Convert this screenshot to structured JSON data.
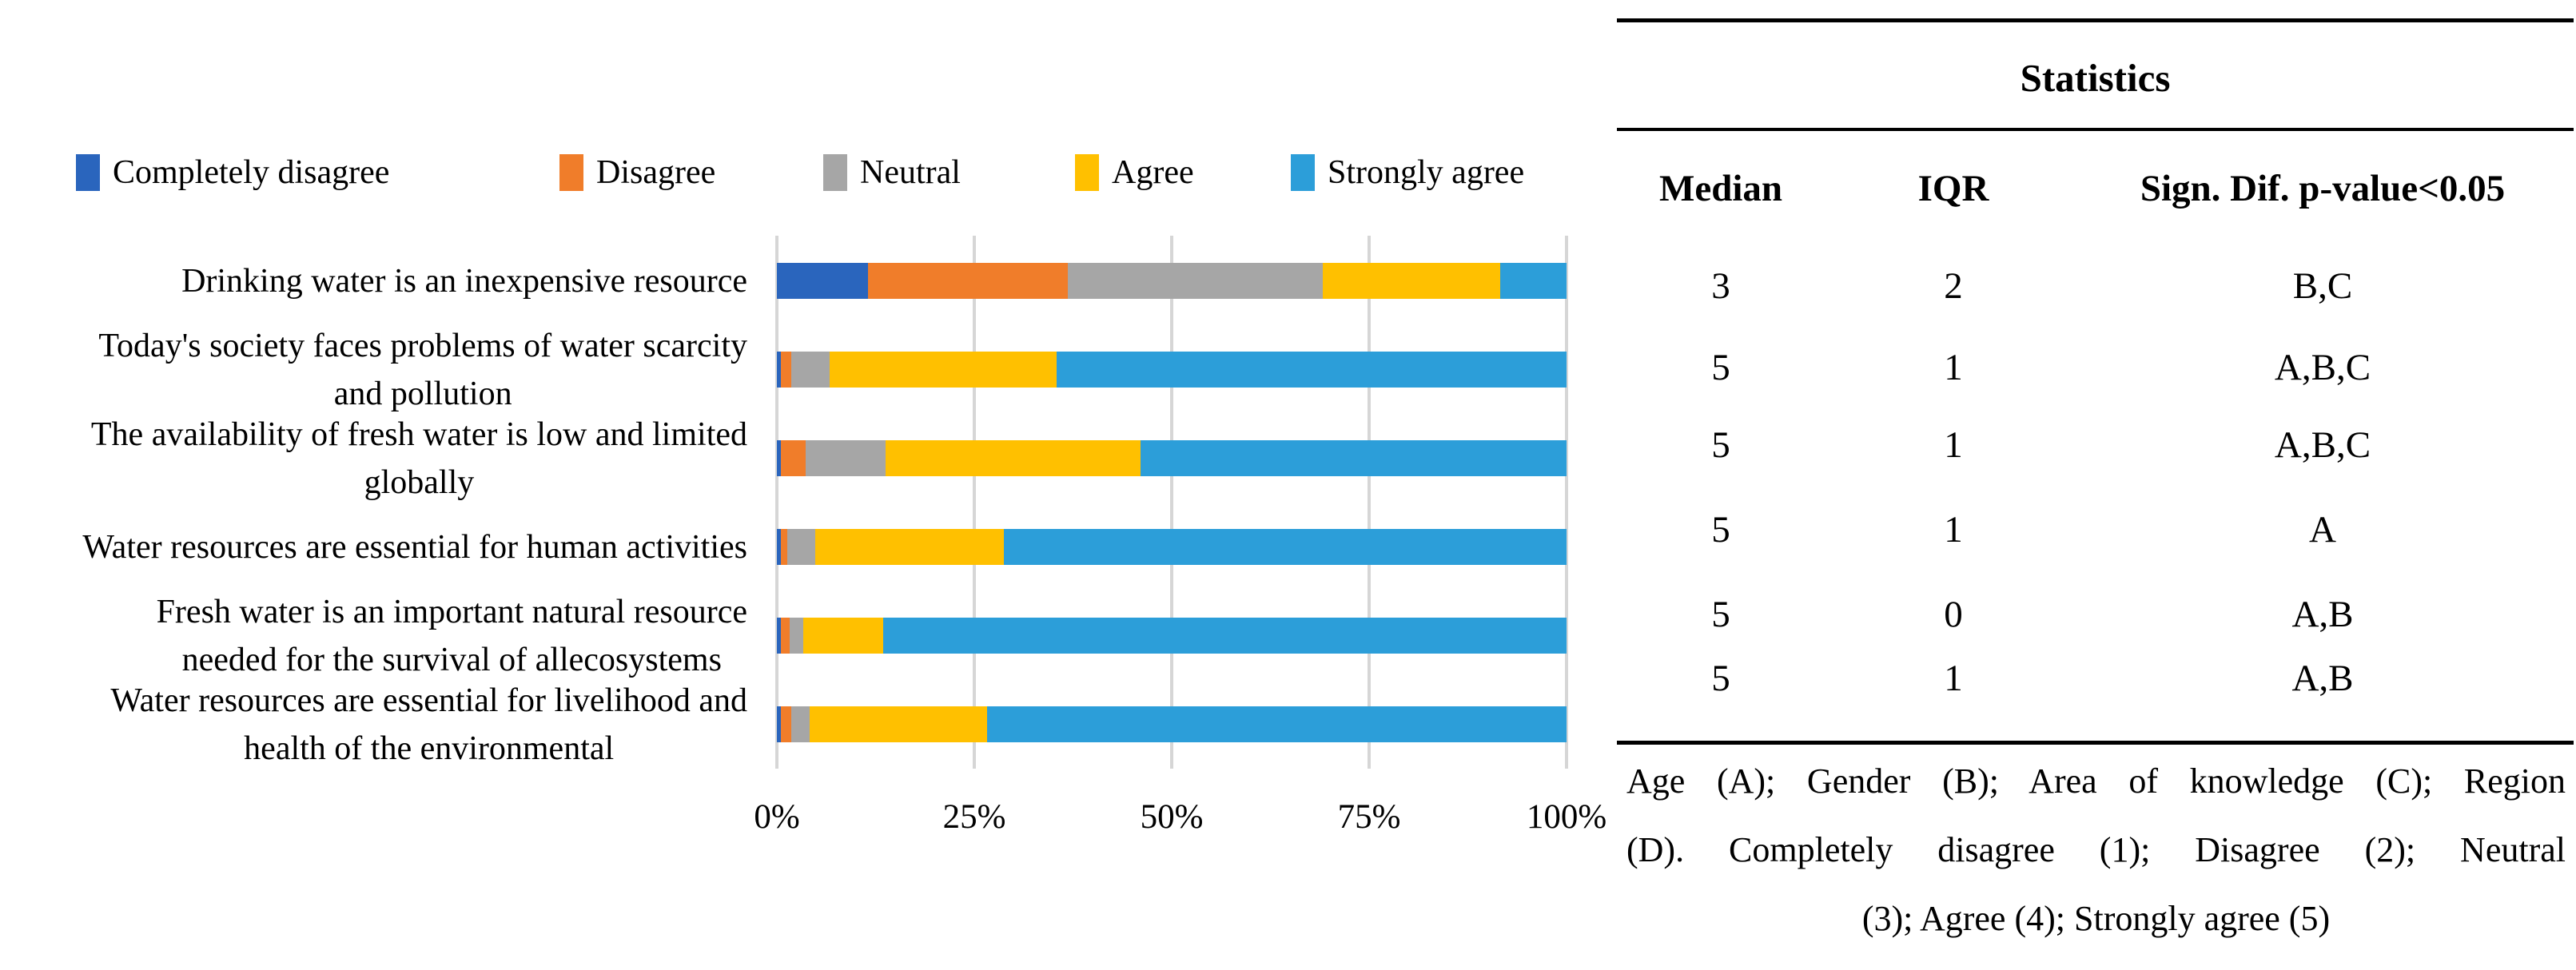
{
  "chart_data": {
    "type": "bar",
    "stacked": true,
    "orientation": "horizontal",
    "unit": "percent",
    "title": "",
    "xlabel": "",
    "ylabel": "",
    "xlim": [
      0,
      100
    ],
    "grid": true,
    "legend_position": "top",
    "x_ticks": [
      "0%",
      "25%",
      "50%",
      "75%",
      "100%"
    ],
    "categories": [
      "Drinking water is an inexpensive resource",
      "Today's society faces problems of water scarcity\nand pollution",
      "The availability of fresh water is low and limited\nglobally",
      "Water resources are essential for human activities",
      "Fresh water is an important natural resource\nneeded for the survival of allecosystems",
      "Water resources are essential for livelihood and\nhealth of the environmental"
    ],
    "series": [
      {
        "name": "Completely disagree",
        "color": "#2a65bd",
        "values": [
          11.5,
          0.5,
          0.5,
          0.5,
          0.5,
          0.5
        ]
      },
      {
        "name": "Disagree",
        "color": "#f07d2a",
        "values": [
          25.3,
          1.3,
          3.1,
          0.8,
          1.1,
          1.3
        ]
      },
      {
        "name": "Neutral",
        "color": "#a6a6a6",
        "values": [
          32.3,
          4.9,
          10.2,
          3.6,
          1.7,
          2.3
        ]
      },
      {
        "name": "Agree",
        "color": "#ffc000",
        "values": [
          22.5,
          28.7,
          32.3,
          23.8,
          10.2,
          22.5
        ]
      },
      {
        "name": "Strongly agree",
        "color": "#2c9ed9",
        "values": [
          8.4,
          64.6,
          53.9,
          71.3,
          86.5,
          73.4
        ]
      }
    ],
    "gridline_color": "#d6d6d6"
  },
  "table": {
    "title": "Statistics",
    "columns": [
      "Median",
      "IQR",
      "Sign. Dif. p-value<0.05"
    ],
    "rows": [
      [
        "3",
        "2",
        "B,C"
      ],
      [
        "5",
        "1",
        "A,B,C"
      ],
      [
        "5",
        "1",
        "A,B,C"
      ],
      [
        "5",
        "1",
        "A"
      ],
      [
        "5",
        "0",
        "A,B"
      ],
      [
        "5",
        "1",
        "A,B"
      ]
    ],
    "footnote_lines": [
      "Age (A); Gender (B); Area of knowledge (C); Region",
      "(D).  Completely disagree (1); Disagree (2); Neutral",
      "(3); Agree (4); Strongly agree (5)"
    ]
  }
}
